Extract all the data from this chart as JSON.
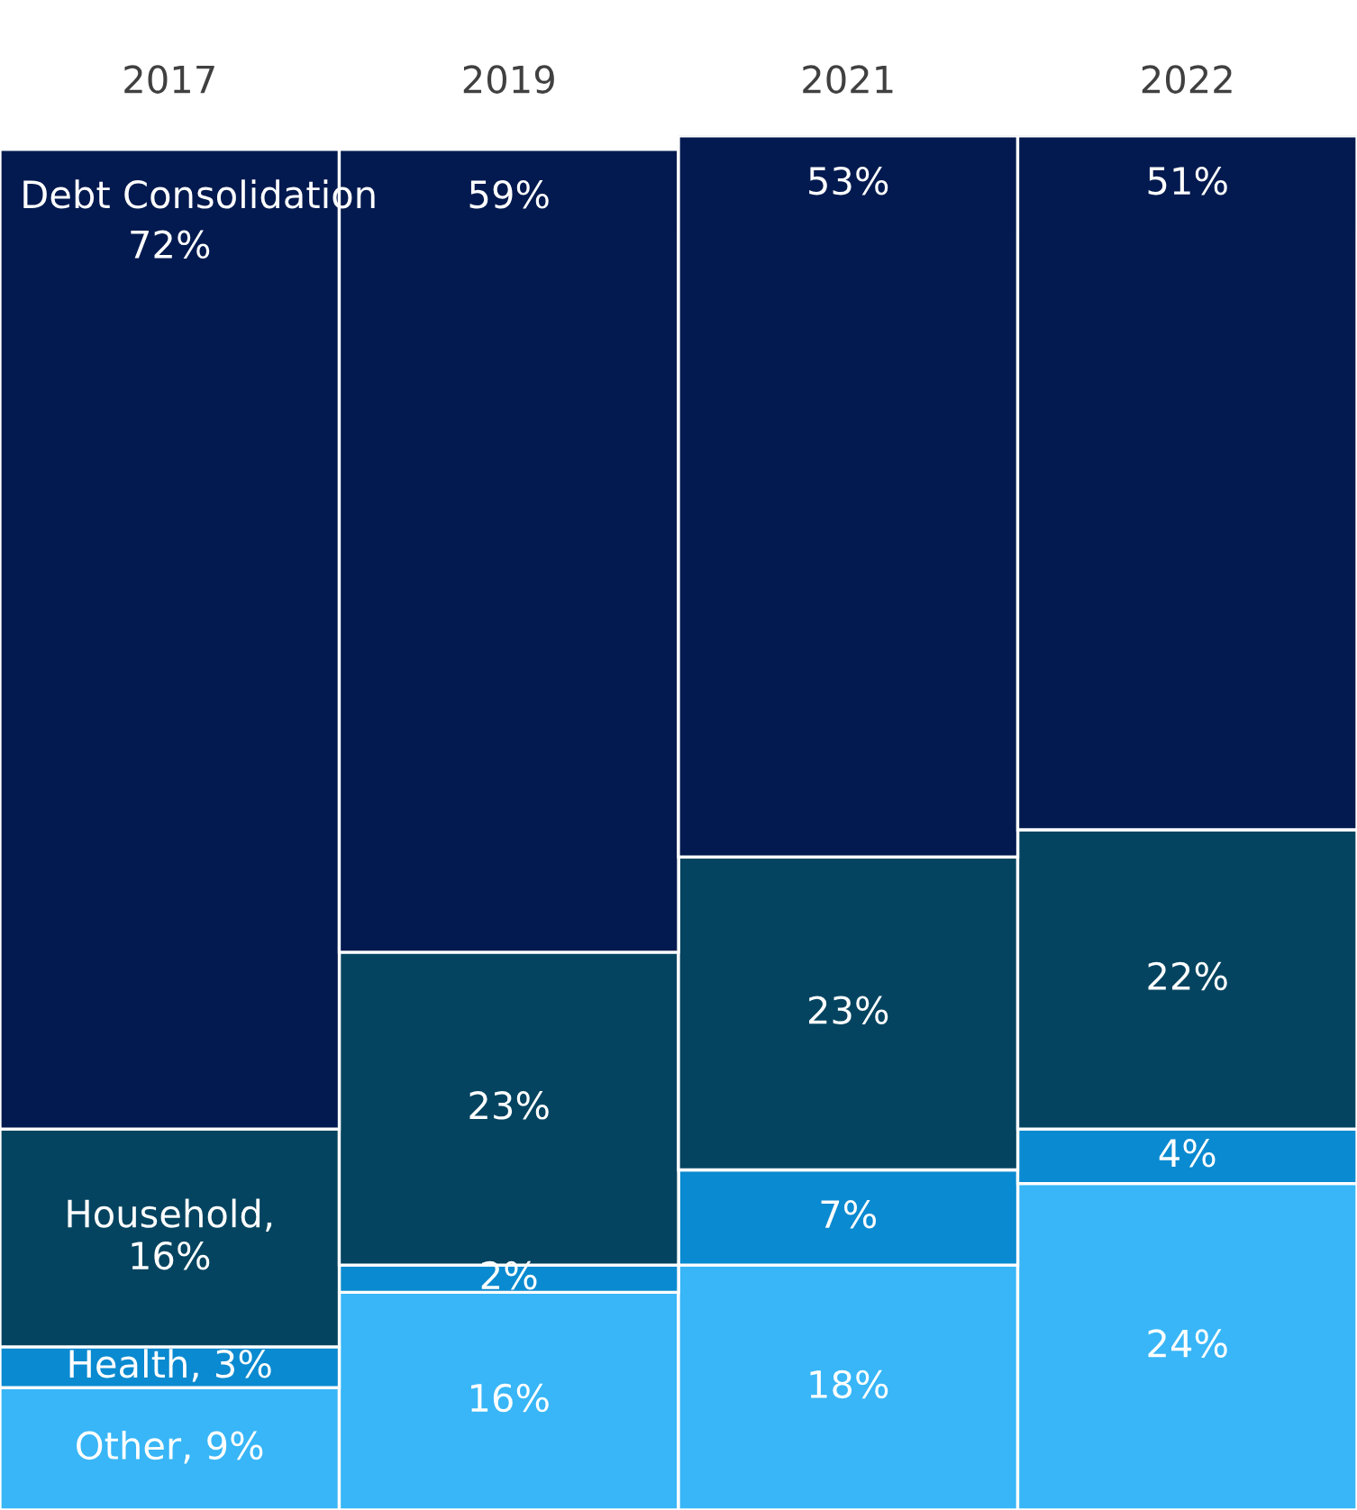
{
  "chart_data": {
    "type": "bar",
    "stacked": true,
    "categories": [
      "2017",
      "2019",
      "2021",
      "2022"
    ],
    "series": [
      {
        "color": "#38b6f7",
        "values": [
          9,
          16,
          18,
          24
        ],
        "value_labels": [
          "Other, 9%",
          "16%",
          "18%",
          "24%"
        ]
      },
      {
        "color": "#0a8ad0",
        "values": [
          3,
          2,
          7,
          4
        ],
        "value_labels": [
          "Health, 3%",
          "2%",
          "7%",
          "4%"
        ]
      },
      {
        "color": "#044460",
        "values": [
          16,
          23,
          23,
          22
        ],
        "value_labels": [
          "Household,\n16%",
          "23%",
          "23%",
          "22%"
        ]
      },
      {
        "name": "Debt Consolidation",
        "color": "#021a4f",
        "values": [
          72,
          59,
          53,
          51
        ],
        "value_labels": [
          "72%",
          "59%",
          "53%",
          "51%"
        ]
      }
    ],
    "legend": false,
    "grid": false
  }
}
